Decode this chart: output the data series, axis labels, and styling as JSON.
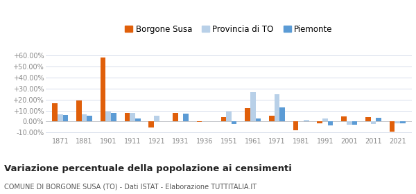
{
  "years": [
    1871,
    1881,
    1901,
    1911,
    1921,
    1931,
    1936,
    1951,
    1961,
    1971,
    1981,
    1991,
    2001,
    2011,
    2021
  ],
  "borgone_susa": [
    16.5,
    19.0,
    58.0,
    7.5,
    -5.5,
    7.5,
    -0.5,
    4.0,
    12.0,
    5.0,
    -8.0,
    -1.5,
    4.5,
    4.0,
    -9.0
  ],
  "provincia_to": [
    6.5,
    6.5,
    9.0,
    7.5,
    5.0,
    0.5,
    0.5,
    9.0,
    26.5,
    25.0,
    0.0,
    2.5,
    -3.0,
    -2.5,
    -1.5
  ],
  "piemonte": [
    6.0,
    5.5,
    7.5,
    2.5,
    0.5,
    7.0,
    0.0,
    -2.0,
    3.0,
    13.0,
    1.0,
    -3.5,
    -3.0,
    3.5,
    -1.5
  ],
  "color_borgone": "#e05f0a",
  "color_provincia": "#b8d0e8",
  "color_piemonte": "#5b9bd5",
  "title": "Variazione percentuale della popolazione ai censimenti",
  "subtitle": "COMUNE DI BORGONE SUSA (TO) - Dati ISTAT - Elaborazione TUTTITALIA.IT",
  "legend_labels": [
    "Borgone Susa",
    "Provincia di TO",
    "Piemonte"
  ],
  "ylim": [
    -13,
    70
  ],
  "yticks": [
    -10,
    0,
    10,
    20,
    30,
    40,
    50,
    60
  ],
  "yticklabels": [
    "-10.00%",
    "0.00%",
    "+10.00%",
    "+20.00%",
    "+30.00%",
    "+40.00%",
    "+50.00%",
    "+60.00%"
  ],
  "bar_width": 0.22,
  "background_color": "#ffffff",
  "grid_color": "#d0d8e8",
  "title_fontsize": 9.5,
  "subtitle_fontsize": 7.0,
  "legend_fontsize": 8.5,
  "tick_fontsize": 7.0
}
